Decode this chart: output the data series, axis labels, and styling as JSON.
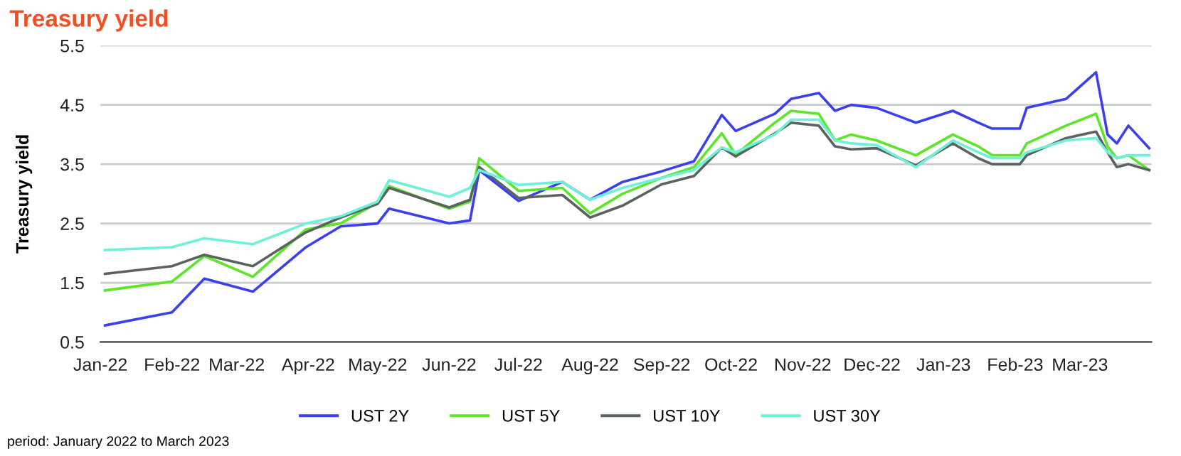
{
  "chart_data": {
    "type": "line",
    "title": "Treasury yield",
    "ylabel": "Treasury yield",
    "annotations": [
      "period: January 2022 to March 2023"
    ],
    "x": [
      "2022-01-03",
      "2022-02-01",
      "2022-02-15",
      "2022-03-08",
      "2022-03-31",
      "2022-04-15",
      "2022-05-01",
      "2022-05-06",
      "2022-06-01",
      "2022-06-10",
      "2022-06-14",
      "2022-07-01",
      "2022-07-20",
      "2022-08-01",
      "2022-08-15",
      "2022-09-01",
      "2022-09-15",
      "2022-09-27",
      "2022-10-03",
      "2022-10-20",
      "2022-10-27",
      "2022-11-08",
      "2022-11-15",
      "2022-11-22",
      "2022-12-03",
      "2022-12-20",
      "2023-01-05",
      "2023-01-16",
      "2023-01-22",
      "2023-02-03",
      "2023-02-06",
      "2023-02-23",
      "2023-03-08",
      "2023-03-13",
      "2023-03-17",
      "2023-03-22",
      "2023-03-31"
    ],
    "series": [
      {
        "name": "UST 2Y",
        "color": "#3b3ff0",
        "values": [
          0.78,
          1.0,
          1.57,
          1.35,
          2.1,
          2.45,
          2.5,
          2.75,
          2.5,
          2.55,
          3.4,
          2.88,
          3.2,
          2.9,
          3.2,
          3.38,
          3.55,
          4.33,
          4.06,
          4.35,
          4.6,
          4.7,
          4.4,
          4.5,
          4.45,
          4.2,
          4.4,
          4.2,
          4.1,
          4.1,
          4.45,
          4.6,
          5.05,
          4.0,
          3.85,
          4.15,
          3.77
        ]
      },
      {
        "name": "UST 5Y",
        "color": "#5ce52a",
        "values": [
          1.37,
          1.52,
          1.95,
          1.6,
          2.4,
          2.5,
          2.85,
          3.13,
          2.75,
          2.87,
          3.6,
          3.05,
          3.1,
          2.67,
          3.0,
          3.27,
          3.45,
          4.02,
          3.66,
          4.2,
          4.4,
          4.35,
          3.9,
          4.0,
          3.9,
          3.65,
          4.0,
          3.8,
          3.65,
          3.65,
          3.85,
          4.15,
          4.35,
          3.8,
          3.6,
          3.65,
          3.4
        ]
      },
      {
        "name": "UST 10Y",
        "color": "#5a6360",
        "values": [
          1.65,
          1.78,
          1.97,
          1.78,
          2.35,
          2.6,
          2.83,
          3.1,
          2.77,
          2.9,
          3.45,
          2.93,
          2.98,
          2.6,
          2.8,
          3.16,
          3.3,
          3.78,
          3.63,
          4.02,
          4.2,
          4.15,
          3.8,
          3.75,
          3.77,
          3.48,
          3.85,
          3.6,
          3.5,
          3.5,
          3.65,
          3.94,
          4.05,
          3.7,
          3.45,
          3.5,
          3.4
        ]
      },
      {
        "name": "UST 30Y",
        "color": "#6ff0d8",
        "values": [
          2.05,
          2.1,
          2.25,
          2.15,
          2.5,
          2.62,
          2.87,
          3.23,
          2.95,
          3.1,
          3.4,
          3.15,
          3.2,
          2.9,
          3.1,
          3.27,
          3.4,
          3.78,
          3.7,
          4.0,
          4.25,
          4.25,
          3.9,
          3.85,
          3.82,
          3.45,
          3.9,
          3.7,
          3.6,
          3.6,
          3.7,
          3.9,
          3.94,
          3.7,
          3.6,
          3.65,
          3.65
        ]
      }
    ],
    "xlim": [
      "2022-01-01",
      "2023-04-01"
    ],
    "xticks": [
      {
        "value": "2022-01-01",
        "label": "Jan-22"
      },
      {
        "value": "2022-02-01",
        "label": "Feb-22"
      },
      {
        "value": "2022-03-01",
        "label": "Mar-22"
      },
      {
        "value": "2022-04-01",
        "label": "Apr-22"
      },
      {
        "value": "2022-05-01",
        "label": "May-22"
      },
      {
        "value": "2022-06-01",
        "label": "Jun-22"
      },
      {
        "value": "2022-07-01",
        "label": "Jul-22"
      },
      {
        "value": "2022-08-01",
        "label": "Aug-22"
      },
      {
        "value": "2022-09-01",
        "label": "Sep-22"
      },
      {
        "value": "2022-10-01",
        "label": "Oct-22"
      },
      {
        "value": "2022-11-01",
        "label": "Nov-22"
      },
      {
        "value": "2022-12-01",
        "label": "Dec-22"
      },
      {
        "value": "2023-01-01",
        "label": "Jan-23"
      },
      {
        "value": "2023-02-01",
        "label": "Feb-23"
      },
      {
        "value": "2023-03-01",
        "label": "Mar-23"
      }
    ],
    "ylim": [
      0.5,
      5.5
    ],
    "yticks": [
      0.5,
      1.5,
      2.5,
      3.5,
      4.5,
      5.5
    ],
    "grid": "y",
    "legend": "bottom",
    "marker": "none",
    "line_style": "solid"
  }
}
